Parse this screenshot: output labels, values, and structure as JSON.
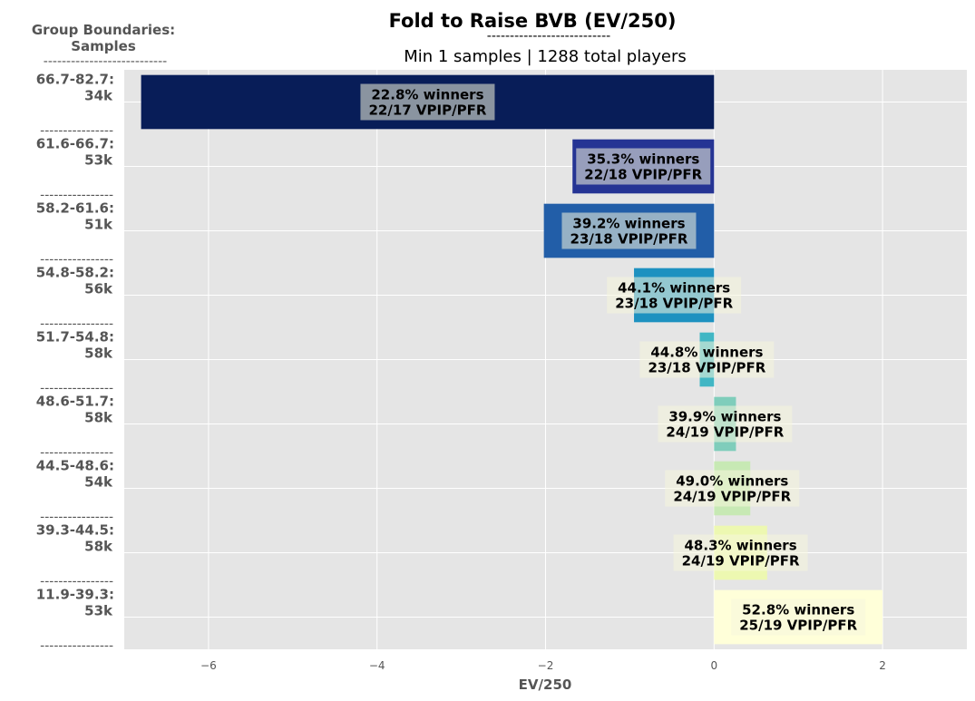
{
  "chart_data": {
    "type": "bar",
    "orientation": "horizontal",
    "title": "Fold to Raise BVB (EV/250)",
    "title_rule": "---------------------------",
    "subtitle": "Min 1 samples | 1288 total players",
    "side_header": [
      "Group Boundaries:",
      "Samples"
    ],
    "side_rule": "---------------------------",
    "separator": "----------------",
    "xlabel": "EV/250",
    "xlim": [
      -7.0,
      3.0
    ],
    "xticks": [
      -6,
      -4,
      -2,
      0,
      2
    ],
    "xtick_labels": [
      "−6",
      "−4",
      "−2",
      "0",
      "2"
    ],
    "grid": true,
    "background": "#e5e5e5",
    "groups": [
      {
        "range": "66.7-82.7:",
        "samples": "34k",
        "value": -6.8,
        "winners": "22.8% winners",
        "vpip_pfr": "22/17 VPIP/PFR",
        "color": "#081d58"
      },
      {
        "range": "61.6-66.7:",
        "samples": "53k",
        "value": -1.68,
        "winners": "35.3% winners",
        "vpip_pfr": "22/18 VPIP/PFR",
        "color": "#253494"
      },
      {
        "range": "58.2-61.6:",
        "samples": "51k",
        "value": -2.02,
        "winners": "39.2% winners",
        "vpip_pfr": "23/18 VPIP/PFR",
        "color": "#225ea8"
      },
      {
        "range": "54.8-58.2:",
        "samples": "56k",
        "value": -0.95,
        "winners": "44.1% winners",
        "vpip_pfr": "23/18 VPIP/PFR",
        "color": "#1d91c0"
      },
      {
        "range": "51.7-54.8:",
        "samples": "58k",
        "value": -0.17,
        "winners": "44.8% winners",
        "vpip_pfr": "23/18 VPIP/PFR",
        "color": "#41b6c4"
      },
      {
        "range": "48.6-51.7:",
        "samples": "58k",
        "value": 0.26,
        "winners": "39.9% winners",
        "vpip_pfr": "24/19 VPIP/PFR",
        "color": "#7fcdbb"
      },
      {
        "range": "44.5-48.6:",
        "samples": "54k",
        "value": 0.43,
        "winners": "49.0% winners",
        "vpip_pfr": "24/19 VPIP/PFR",
        "color": "#c7e9b4"
      },
      {
        "range": "39.3-44.5:",
        "samples": "58k",
        "value": 0.63,
        "winners": "48.3% winners",
        "vpip_pfr": "24/19 VPIP/PFR",
        "color": "#edf8b1"
      },
      {
        "range": "11.9-39.3:",
        "samples": "53k",
        "value": 2.0,
        "winners": "52.8% winners",
        "vpip_pfr": "25/19 VPIP/PFR",
        "color": "#ffffd9"
      }
    ]
  }
}
